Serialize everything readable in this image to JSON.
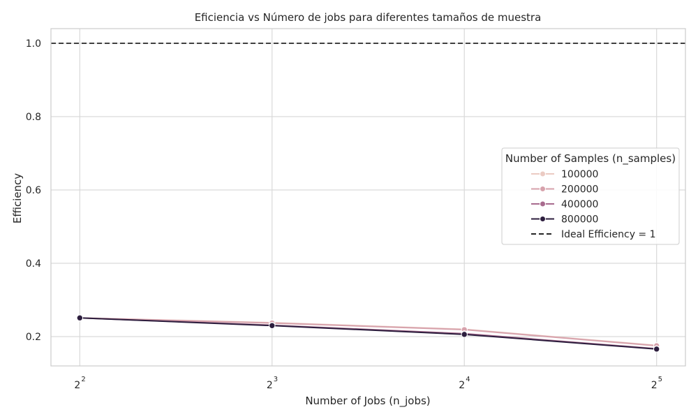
{
  "chart_data": {
    "type": "line",
    "title": "Eficiencia vs Número de jobs para diferentes tamaños de muestra",
    "xlabel": "Number of Jobs (n_jobs)",
    "ylabel": "Efficiency",
    "x_scale": "log2",
    "x": [
      4,
      8,
      16,
      32
    ],
    "x_ticks": [
      {
        "base": "2",
        "exp": "2"
      },
      {
        "base": "2",
        "exp": "3"
      },
      {
        "base": "2",
        "exp": "4"
      },
      {
        "base": "2",
        "exp": "5"
      }
    ],
    "ylim": [
      0.12,
      1.04
    ],
    "y_ticks": [
      "0.2",
      "0.4",
      "0.6",
      "0.8",
      "1.0"
    ],
    "grid": true,
    "legend": {
      "title": "Number of Samples (n_samples)",
      "placement": "center-right"
    },
    "series": [
      {
        "name": "100000",
        "color": "#ebcbc3",
        "values": [
          0.251,
          0.238,
          0.22,
          0.176
        ]
      },
      {
        "name": "200000",
        "color": "#d7a2ac",
        "values": [
          0.251,
          0.237,
          0.219,
          0.175
        ]
      },
      {
        "name": "400000",
        "color": "#a86b8e",
        "values": [
          0.251,
          0.231,
          0.208,
          0.167
        ]
      },
      {
        "name": "800000",
        "color": "#2d1e3e",
        "values": [
          0.251,
          0.23,
          0.206,
          0.166
        ]
      }
    ],
    "reference_line": {
      "name": "Ideal Efficiency = 1",
      "y": 1.0,
      "color": "#262626",
      "style": "dashed"
    }
  }
}
